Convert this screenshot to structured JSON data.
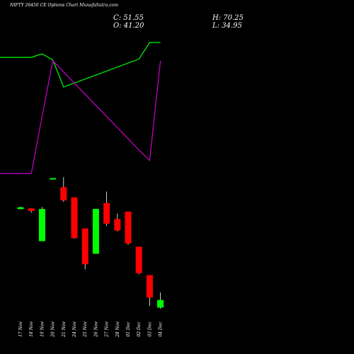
{
  "header": {
    "title": "NIFTY 26450 CE Options Chart MunafaSutra.com",
    "close": "C: 51.55",
    "high": "H: 70.25",
    "open": "O: 41.20",
    "low": "L: 34.95"
  },
  "colors": {
    "background": "#000000",
    "up": "#00ff00",
    "down": "#ff0000",
    "wick": "#ffffff",
    "line_upper": "#00ff00",
    "line_lower": "#cc00cc"
  },
  "chart_data": {
    "type": "candlestick",
    "title": "NIFTY 26450 CE Options Chart MunafaSutra.com",
    "categories": [
      "17 Nov",
      "18 Nov",
      "19 Nov",
      "20 Nov",
      "21 Nov",
      "24 Nov",
      "25 Nov",
      "26 Nov",
      "27 Nov",
      "28 Nov",
      "01 Dec",
      "02 Dec",
      "03 Dec",
      "04 Dec"
    ],
    "candles": [
      {
        "date": "17 Nov",
        "open": 262,
        "close": 288,
        "high": 296,
        "low": 258,
        "dir": "up"
      },
      {
        "date": "18 Nov",
        "open": 272,
        "close": 235,
        "high": 274,
        "low": 210,
        "dir": "down"
      },
      {
        "date": "19 Nov",
        "open": -195,
        "close": 264,
        "high": 292,
        "low": -195,
        "dir": "up"
      },
      {
        "date": "20 Nov",
        "open": 692,
        "close": 704,
        "high": 706,
        "low": 690,
        "dir": "up"
      },
      {
        "date": "21 Nov",
        "open": 574,
        "close": 385,
        "high": 718,
        "low": 365,
        "dir": "down"
      },
      {
        "date": "24 Nov",
        "open": 430,
        "close": -152,
        "high": 430,
        "low": -159,
        "dir": "down"
      },
      {
        "date": "25 Nov",
        "open": -15,
        "close": -526,
        "high": -15,
        "low": -599,
        "dir": "down"
      },
      {
        "date": "26 Nov",
        "open": -376,
        "close": 264,
        "high": 264,
        "low": -376,
        "dir": "up"
      },
      {
        "date": "27 Nov",
        "open": 347,
        "close": 54,
        "high": 512,
        "low": 20,
        "dir": "down"
      },
      {
        "date": "28 Nov",
        "open": 120,
        "close": -43,
        "high": 198,
        "low": -56,
        "dir": "down"
      },
      {
        "date": "01 Dec",
        "open": 226,
        "close": -229,
        "high": 226,
        "low": -246,
        "dir": "down"
      },
      {
        "date": "02 Dec",
        "open": -275,
        "close": -652,
        "high": -275,
        "low": -669,
        "dir": "down"
      },
      {
        "date": "03 Dec",
        "open": -681,
        "close": -1000,
        "high": -681,
        "low": -1119,
        "dir": "down"
      },
      {
        "date": "04 Dec",
        "open": -1144,
        "close": -1035,
        "high": -928,
        "low": -1161,
        "dir": "up"
      }
    ],
    "series": [
      {
        "values": [
          7,
          7,
          11,
          4,
          -27,
          null,
          null,
          null,
          null,
          null,
          null,
          5,
          24,
          24
        ]
      },
      {
        "values": [
          -126,
          -126,
          -61,
          3,
          null,
          null,
          null,
          null,
          null,
          null,
          null,
          -99,
          -111,
          3
        ]
      }
    ],
    "ylim": [
      -1200,
      720
    ]
  }
}
